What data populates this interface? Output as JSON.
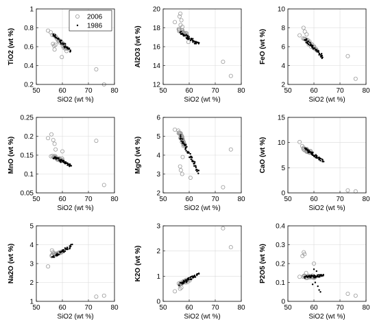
{
  "figure": {
    "series_styles": {
      "2006": {
        "marker": "open-circle",
        "color": "#9a9a9a"
      },
      "1986": {
        "marker": "dot",
        "color": "#000000"
      }
    },
    "legend": {
      "entries": [
        "2006",
        "1986"
      ],
      "location": "top-right of first panel"
    }
  },
  "chart_data": [
    {
      "type": "scatter",
      "id": "tio2",
      "xlabel": "SiO2 (wt %)",
      "ylabel": "TiO2 (wt %)",
      "xlim": [
        50,
        80
      ],
      "ylim": [
        0.2,
        1
      ],
      "xticks": [
        50,
        60,
        70,
        80
      ],
      "yticks": [
        0.2,
        0.4,
        0.6,
        0.8,
        1
      ],
      "ytick_labels": [
        "0.2",
        "0.4",
        "0.6",
        "0.8",
        "1"
      ],
      "grid": true,
      "series": [
        {
          "name": "2006",
          "trend": {
            "x": [
              56,
              62
            ],
            "y": [
              0.74,
              0.56
            ],
            "n": 22
          },
          "points": [
            [
              54.5,
              0.77
            ],
            [
              56.4,
              0.63
            ],
            [
              56.8,
              0.61
            ],
            [
              57.0,
              0.57
            ],
            [
              57.3,
              0.62
            ],
            [
              59.8,
              0.49
            ],
            [
              73,
              0.36
            ],
            [
              76,
              0.2
            ]
          ]
        },
        {
          "name": "1986",
          "trend": {
            "x": [
              56.5,
              63.5
            ],
            "y": [
              0.73,
              0.545
            ],
            "n": 45
          },
          "points": []
        }
      ]
    },
    {
      "type": "scatter",
      "id": "al2o3",
      "xlabel": "SiO2 (wt %)",
      "ylabel": "Al2O3 (wt %)",
      "xlim": [
        50,
        80
      ],
      "ylim": [
        12,
        20
      ],
      "xticks": [
        50,
        60,
        70,
        80
      ],
      "yticks": [
        12,
        14,
        16,
        18,
        20
      ],
      "ytick_labels": [
        "12",
        "14",
        "16",
        "18",
        "20"
      ],
      "grid": true,
      "series": [
        {
          "name": "2006",
          "trend": {
            "x": [
              56,
              59
            ],
            "y": [
              17.8,
              17.2
            ],
            "n": 20
          },
          "points": [
            [
              54.5,
              18.6
            ],
            [
              56.3,
              19.2
            ],
            [
              56.6,
              19.5
            ],
            [
              57.0,
              18.8
            ],
            [
              56.7,
              18.3
            ],
            [
              57.4,
              18.1
            ],
            [
              59.7,
              16.5
            ],
            [
              73,
              14.4
            ],
            [
              76,
              12.9
            ]
          ]
        },
        {
          "name": "1986",
          "trend": {
            "x": [
              56.5,
              63.5
            ],
            "y": [
              17.5,
              16.3
            ],
            "n": 45
          },
          "points": []
        }
      ]
    },
    {
      "type": "scatter",
      "id": "feo",
      "xlabel": "SiO2 (wt %)",
      "ylabel": "FeO (wt %)",
      "xlim": [
        50,
        80
      ],
      "ylim": [
        2,
        10
      ],
      "xticks": [
        50,
        60,
        70,
        80
      ],
      "yticks": [
        2,
        4,
        6,
        8,
        10
      ],
      "ytick_labels": [
        "2",
        "4",
        "6",
        "8",
        "10"
      ],
      "grid": true,
      "series": [
        {
          "name": "2006",
          "trend": {
            "x": [
              56,
              61
            ],
            "y": [
              6.9,
              5.6
            ],
            "n": 20
          },
          "points": [
            [
              54.5,
              7.2
            ],
            [
              56.0,
              8.0
            ],
            [
              56.5,
              7.6
            ],
            [
              57.2,
              7.3
            ],
            [
              73,
              5.0
            ],
            [
              76,
              2.6
            ]
          ]
        },
        {
          "name": "1986",
          "trend": {
            "x": [
              56.5,
              63.5
            ],
            "y": [
              6.8,
              4.9
            ],
            "n": 45
          },
          "points": []
        }
      ]
    },
    {
      "type": "scatter",
      "id": "mno",
      "xlabel": "SiO2 (wt %)",
      "ylabel": "MnO (wt %)",
      "xlim": [
        50,
        80
      ],
      "ylim": [
        0.05,
        0.25
      ],
      "xticks": [
        50,
        60,
        70,
        80
      ],
      "yticks": [
        0.05,
        0.1,
        0.15,
        0.2,
        0.25
      ],
      "ytick_labels": [
        "0.05",
        "0.1",
        "0.15",
        "0.2",
        "0.25"
      ],
      "grid": true,
      "series": [
        {
          "name": "2006",
          "trend": {
            "x": [
              56,
              60
            ],
            "y": [
              0.146,
              0.138
            ],
            "n": 20
          },
          "points": [
            [
              54.5,
              0.195
            ],
            [
              55.8,
              0.205
            ],
            [
              56.5,
              0.19
            ],
            [
              57.0,
              0.18
            ],
            [
              57.4,
              0.165
            ],
            [
              60.0,
              0.16
            ],
            [
              73,
              0.188
            ],
            [
              76,
              0.071
            ]
          ]
        },
        {
          "name": "1986",
          "trend": {
            "x": [
              56.5,
              63.5
            ],
            "y": [
              0.145,
              0.122
            ],
            "n": 45
          },
          "points": []
        }
      ]
    },
    {
      "type": "scatter",
      "id": "mgo",
      "xlabel": "SiO2 (wt %)",
      "ylabel": "MgO (wt %)",
      "xlim": [
        50,
        80
      ],
      "ylim": [
        2,
        6
      ],
      "xticks": [
        50,
        60,
        70,
        80
      ],
      "yticks": [
        2,
        3,
        4,
        5,
        6
      ],
      "ytick_labels": [
        "2",
        "3",
        "4",
        "5",
        "6"
      ],
      "grid": true,
      "series": [
        {
          "name": "2006",
          "trend": {
            "x": [
              56.2,
              58
            ],
            "y": [
              5.25,
              4.5
            ],
            "n": 30
          },
          "points": [
            [
              54.5,
              5.35
            ],
            [
              56.5,
              3.4
            ],
            [
              56.8,
              3.2
            ],
            [
              57.3,
              3.0
            ],
            [
              57.5,
              3.9
            ],
            [
              60.5,
              2.8
            ],
            [
              73,
              2.3
            ],
            [
              76,
              4.3
            ]
          ]
        },
        {
          "name": "1986",
          "trend": {
            "x": [
              56.5,
              63.5
            ],
            "y": [
              5.0,
              3.1
            ],
            "n": 50
          },
          "points": []
        }
      ]
    },
    {
      "type": "scatter",
      "id": "cao",
      "xlabel": "SiO2 (wt %)",
      "ylabel": "CaO (wt %)",
      "xlim": [
        50,
        80
      ],
      "ylim": [
        0,
        15
      ],
      "xticks": [
        50,
        60,
        70,
        80
      ],
      "yticks": [
        0,
        5,
        10,
        15
      ],
      "ytick_labels": [
        "0",
        "5",
        "10",
        "15"
      ],
      "grid": true,
      "series": [
        {
          "name": "2006",
          "trend": {
            "x": [
              56,
              59
            ],
            "y": [
              8.8,
              8.0
            ],
            "n": 20
          },
          "points": [
            [
              54.5,
              10.1
            ],
            [
              55.5,
              9.3
            ],
            [
              73,
              0.5
            ],
            [
              76,
              0.3
            ]
          ]
        },
        {
          "name": "1986",
          "trend": {
            "x": [
              56.5,
              63.5
            ],
            "y": [
              8.7,
              6.4
            ],
            "n": 45
          },
          "points": []
        }
      ]
    },
    {
      "type": "scatter",
      "id": "na2o",
      "xlabel": "SiO2 (wt %)",
      "ylabel": "Na2O (wt %)",
      "xlim": [
        50,
        80
      ],
      "ylim": [
        1,
        5
      ],
      "xticks": [
        50,
        60,
        70,
        80
      ],
      "yticks": [
        1,
        2,
        3,
        4,
        5
      ],
      "ytick_labels": [
        "1",
        "2",
        "3",
        "4",
        "5"
      ],
      "grid": true,
      "series": [
        {
          "name": "2006",
          "trend": {
            "x": [
              56,
              60
            ],
            "y": [
              3.45,
              3.6
            ],
            "n": 20
          },
          "points": [
            [
              54.5,
              2.85
            ],
            [
              56.0,
              3.7
            ],
            [
              56.4,
              3.6
            ],
            [
              73,
              1.25
            ],
            [
              76,
              1.3
            ]
          ]
        },
        {
          "name": "1986",
          "trend": {
            "x": [
              56.5,
              63.5
            ],
            "y": [
              3.35,
              3.95
            ],
            "n": 45
          },
          "points": []
        }
      ]
    },
    {
      "type": "scatter",
      "id": "k2o",
      "xlabel": "SiO2 (wt %)",
      "ylabel": "K2O (wt %)",
      "xlim": [
        50,
        80
      ],
      "ylim": [
        0,
        3
      ],
      "xticks": [
        50,
        60,
        70,
        80
      ],
      "yticks": [
        0,
        1,
        2,
        3
      ],
      "ytick_labels": [
        "0",
        "1",
        "2",
        "3"
      ],
      "grid": true,
      "series": [
        {
          "name": "2006",
          "trend": {
            "x": [
              56,
              60
            ],
            "y": [
              0.7,
              0.85
            ],
            "n": 20
          },
          "points": [
            [
              54.5,
              0.4
            ],
            [
              56.5,
              0.5
            ],
            [
              57.0,
              0.55
            ],
            [
              73,
              2.9
            ],
            [
              76,
              2.15
            ]
          ]
        },
        {
          "name": "1986",
          "trend": {
            "x": [
              56.5,
              63.5
            ],
            "y": [
              0.68,
              1.08
            ],
            "n": 45
          },
          "points": []
        }
      ]
    },
    {
      "type": "scatter",
      "id": "p2o5",
      "xlabel": "SiO2 (wt %)",
      "ylabel": "P2O5 (wt %)",
      "xlim": [
        50,
        80
      ],
      "ylim": [
        0,
        0.4
      ],
      "xticks": [
        50,
        60,
        70,
        80
      ],
      "yticks": [
        0,
        0.1,
        0.2,
        0.3,
        0.4
      ],
      "ytick_labels": [
        "0",
        "0.1",
        "0.2",
        "0.3",
        "0.4"
      ],
      "grid": true,
      "series": [
        {
          "name": "2006",
          "trend": {
            "x": [
              56,
              60
            ],
            "y": [
              0.13,
              0.13
            ],
            "n": 20
          },
          "points": [
            [
              54.5,
              0.13
            ],
            [
              55.6,
              0.24
            ],
            [
              56.1,
              0.26
            ],
            [
              56.4,
              0.25
            ],
            [
              57.0,
              0.15
            ],
            [
              60.0,
              0.2
            ],
            [
              73,
              0.04
            ],
            [
              76,
              0.03
            ]
          ]
        },
        {
          "name": "1986",
          "trend": {
            "x": [
              56.5,
              63.5
            ],
            "y": [
              0.13,
              0.135
            ],
            "n": 45
          },
          "points": [
            [
              59.5,
              0.09
            ],
            [
              60.5,
              0.1
            ],
            [
              61.5,
              0.08
            ],
            [
              62.0,
              0.06
            ],
            [
              62.5,
              0.05
            ],
            [
              60.0,
              0.17
            ],
            [
              61.0,
              0.16
            ]
          ]
        }
      ]
    }
  ]
}
